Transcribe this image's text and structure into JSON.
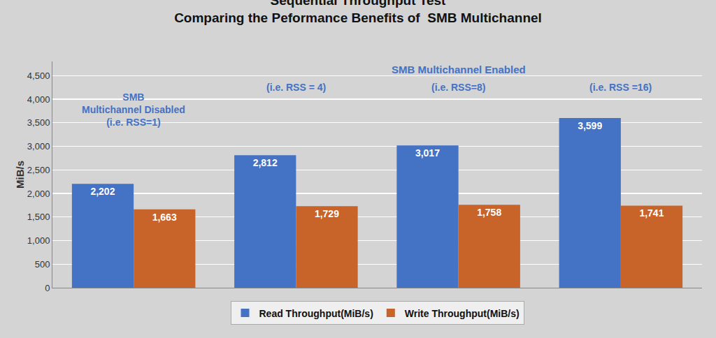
{
  "chart_data": {
    "type": "bar",
    "title": "Sequential Throughput Test",
    "subtitle": "Comparing the Peformance Benefits of  SMB Multichannel",
    "ylabel": "MiB/s",
    "categories": [
      null,
      null,
      null,
      null
    ],
    "series": [
      {
        "name": "Read Throughput(MiB/s)",
        "color": "#4472C4",
        "values": [
          2202,
          2812,
          3017,
          3599
        ],
        "value_labels": [
          "2,202",
          "2,812",
          "3,017",
          "3,599"
        ]
      },
      {
        "name": "Write Throughput(MiB/s)",
        "color": "#C8642A",
        "values": [
          1663,
          1729,
          1758,
          1741
        ],
        "value_labels": [
          "1,663",
          "1,729",
          "1,758",
          "1,741"
        ]
      }
    ],
    "ylim": [
      0,
      4800
    ],
    "yticks": [
      0,
      500,
      {
        "value": 1000,
        "label": "1,000"
      },
      {
        "value": 1500,
        "label": "1,500"
      },
      {
        "value": 2000,
        "label": "2,000"
      },
      {
        "value": 2500,
        "label": "2,500"
      },
      {
        "value": 3000,
        "label": "3,000"
      },
      {
        "value": 3500,
        "label": "3,500"
      },
      {
        "value": 4000,
        "label": "4,000"
      },
      {
        "value": 4500,
        "label": "4,500"
      }
    ],
    "grid": true,
    "legend": "bottom",
    "data_labels": true,
    "tick_labels": "y",
    "annotations": [
      {
        "text": "SMB\nMultichannel Disabled\n(i.e. RSS=1)",
        "color": "#4472C4"
      },
      {
        "text": "SMB Multichannel Enabled",
        "color": "#4472C4"
      },
      {
        "text": "(i.e. RSS = 4)",
        "color": "#4472C4"
      },
      {
        "text": "(i.e. RSS=8)",
        "color": "#4472C4"
      },
      {
        "text": "(i.e. RSS =16)",
        "color": "#4472C4"
      }
    ]
  }
}
